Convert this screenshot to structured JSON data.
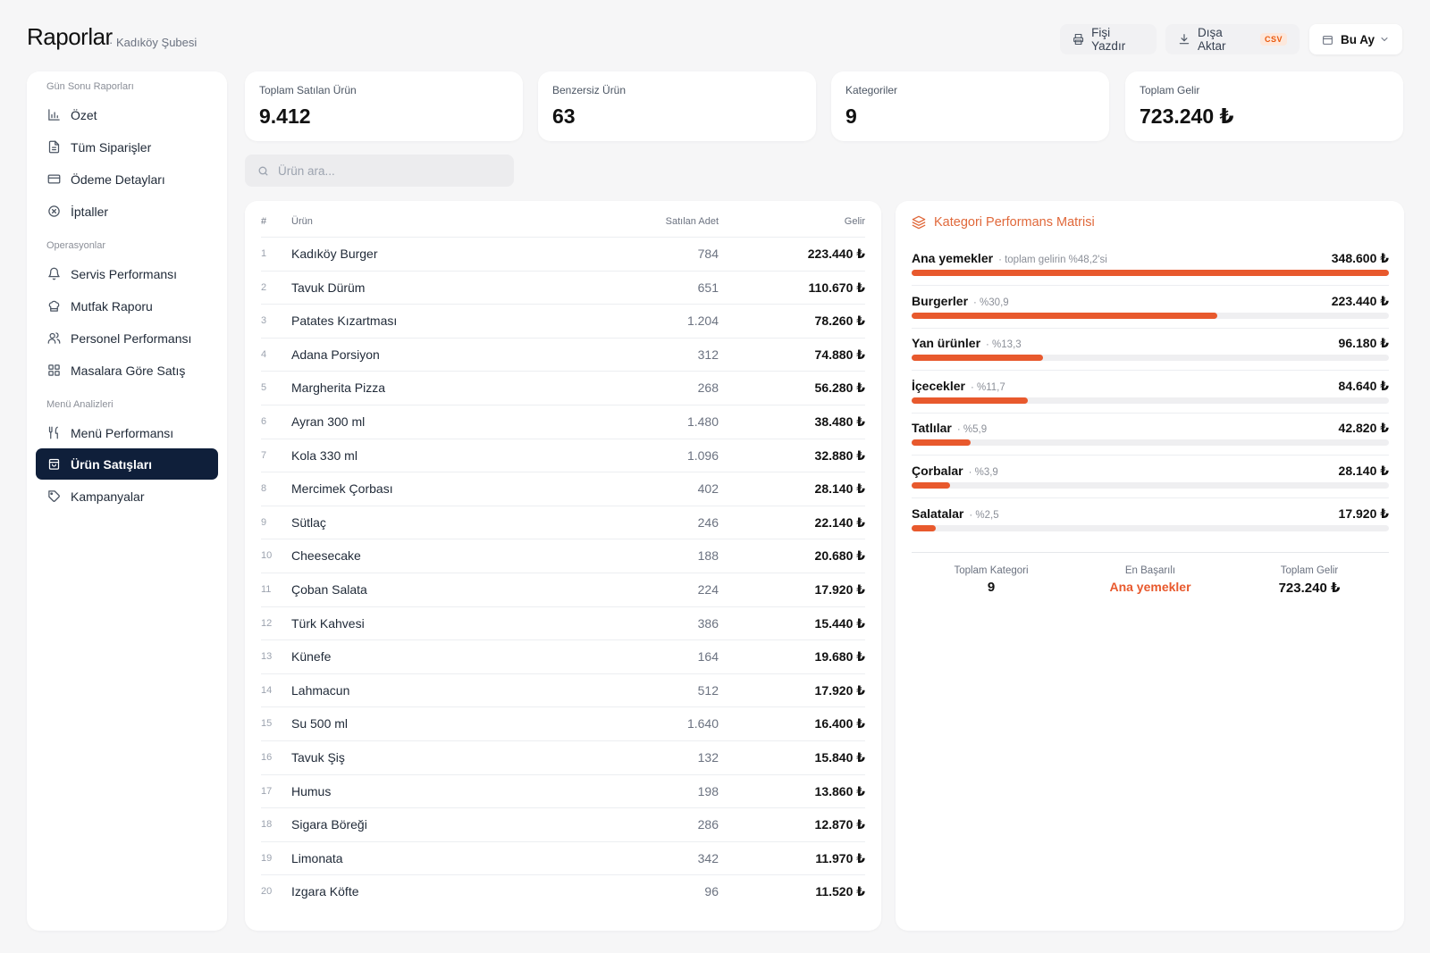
{
  "header": {
    "title": "Raporlar",
    "subtitle": "· Kadıköy Şubesi",
    "print_label": "Fişi Yazdır",
    "export_label": "Dışa Aktar",
    "export_badge": "CSV",
    "period_label": "Bu Ay"
  },
  "sidebar": {
    "sections": [
      {
        "label": "Gün Sonu Raporları",
        "items": [
          {
            "label": "Özet",
            "icon": "bar-chart-icon"
          },
          {
            "label": "Tüm Siparişler",
            "icon": "document-icon"
          },
          {
            "label": "Ödeme Detayları",
            "icon": "credit-card-icon"
          },
          {
            "label": "İptaller",
            "icon": "cancel-circle-icon"
          }
        ]
      },
      {
        "label": "Operasyonlar",
        "items": [
          {
            "label": "Servis Performansı",
            "icon": "bell-icon"
          },
          {
            "label": "Mutfak Raporu",
            "icon": "chef-hat-icon"
          },
          {
            "label": "Personel Performansı",
            "icon": "users-icon"
          },
          {
            "label": "Masalara Göre Satış",
            "icon": "grid-icon"
          }
        ]
      },
      {
        "label": "Menü Analizleri",
        "items": [
          {
            "label": "Menü Performansı",
            "icon": "utensils-icon"
          },
          {
            "label": "Ürün Satışları",
            "icon": "shopping-bag-icon",
            "active": true
          },
          {
            "label": "Kampanyalar",
            "icon": "tag-icon"
          }
        ]
      }
    ]
  },
  "stats": [
    {
      "label": "Toplam Satılan Ürün",
      "value": "9.412"
    },
    {
      "label": "Benzersiz Ürün",
      "value": "63"
    },
    {
      "label": "Kategoriler",
      "value": "9"
    },
    {
      "label": "Toplam Gelir",
      "value": "723.240 ₺"
    }
  ],
  "search": {
    "placeholder": "Ürün ara..."
  },
  "products": {
    "columns": {
      "num": "#",
      "name": "Ürün",
      "qty": "Satılan Adet",
      "revenue": "Gelir"
    },
    "rows": [
      {
        "num": "1",
        "name": "Kadıköy Burger",
        "qty": "784",
        "revenue": "223.440 ₺"
      },
      {
        "num": "2",
        "name": "Tavuk Dürüm",
        "qty": "651",
        "revenue": "110.670 ₺"
      },
      {
        "num": "3",
        "name": "Patates Kızartması",
        "qty": "1.204",
        "revenue": "78.260 ₺"
      },
      {
        "num": "4",
        "name": "Adana Porsiyon",
        "qty": "312",
        "revenue": "74.880 ₺"
      },
      {
        "num": "5",
        "name": "Margherita Pizza",
        "qty": "268",
        "revenue": "56.280 ₺"
      },
      {
        "num": "6",
        "name": "Ayran 300 ml",
        "qty": "1.480",
        "revenue": "38.480 ₺"
      },
      {
        "num": "7",
        "name": "Kola 330 ml",
        "qty": "1.096",
        "revenue": "32.880 ₺"
      },
      {
        "num": "8",
        "name": "Mercimek Çorbası",
        "qty": "402",
        "revenue": "28.140 ₺"
      },
      {
        "num": "9",
        "name": "Sütlaç",
        "qty": "246",
        "revenue": "22.140 ₺"
      },
      {
        "num": "10",
        "name": "Cheesecake",
        "qty": "188",
        "revenue": "20.680 ₺"
      },
      {
        "num": "11",
        "name": "Çoban Salata",
        "qty": "224",
        "revenue": "17.920 ₺"
      },
      {
        "num": "12",
        "name": "Türk Kahvesi",
        "qty": "386",
        "revenue": "15.440 ₺"
      },
      {
        "num": "13",
        "name": "Künefe",
        "qty": "164",
        "revenue": "19.680 ₺"
      },
      {
        "num": "14",
        "name": "Lahmacun",
        "qty": "512",
        "revenue": "17.920 ₺"
      },
      {
        "num": "15",
        "name": "Su 500 ml",
        "qty": "1.640",
        "revenue": "16.400 ₺"
      },
      {
        "num": "16",
        "name": "Tavuk Şiş",
        "qty": "132",
        "revenue": "15.840 ₺"
      },
      {
        "num": "17",
        "name": "Humus",
        "qty": "198",
        "revenue": "13.860 ₺"
      },
      {
        "num": "18",
        "name": "Sigara Böreği",
        "qty": "286",
        "revenue": "12.870 ₺"
      },
      {
        "num": "19",
        "name": "Limonata",
        "qty": "342",
        "revenue": "11.970 ₺"
      },
      {
        "num": "20",
        "name": "Izgara Köfte",
        "qty": "96",
        "revenue": "11.520 ₺"
      }
    ]
  },
  "categories": {
    "title": "Kategori Performans Matrisi",
    "accent_color": "#e8592d",
    "rows": [
      {
        "name": "Ana yemekler",
        "share": "· toplam gelirin %48,2'si",
        "revenue": "348.600 ₺",
        "level": 1.0
      },
      {
        "name": "Burgerler",
        "share": "· %30,9",
        "revenue": "223.440 ₺",
        "level": 0.641
      },
      {
        "name": "Yan ürünler",
        "share": "· %13,3",
        "revenue": "96.180 ₺",
        "level": 0.276
      },
      {
        "name": "İçecekler",
        "share": "· %11,7",
        "revenue": "84.640 ₺",
        "level": 0.243
      },
      {
        "name": "Tatlılar",
        "share": "· %5,9",
        "revenue": "42.820 ₺",
        "level": 0.123
      },
      {
        "name": "Çorbalar",
        "share": "· %3,9",
        "revenue": "28.140 ₺",
        "level": 0.081
      },
      {
        "name": "Salatalar",
        "share": "· %2,5",
        "revenue": "17.920 ₺",
        "level": 0.051
      }
    ],
    "footer": {
      "total_categories_label": "Toplam Kategori",
      "total_categories_value": "9",
      "best_label": "En Başarılı",
      "best_value": "Ana yemekler",
      "total_revenue_label": "Toplam Gelir",
      "total_revenue_value": "723.240 ₺"
    }
  }
}
